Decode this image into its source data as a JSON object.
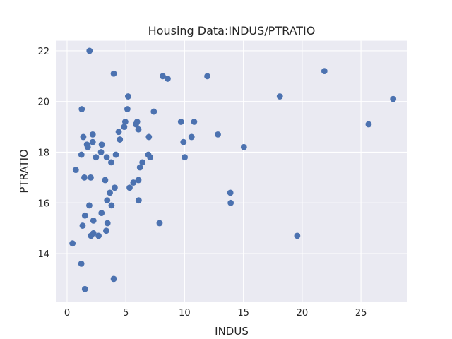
{
  "chart_data": {
    "type": "scatter",
    "title": "Housing Data:INDUS/PTRATIO",
    "xlabel": "INDUS",
    "ylabel": "PTRATIO",
    "xlim": [
      -0.9,
      28.9
    ],
    "ylim": [
      12.1,
      22.4
    ],
    "xticks": [
      0,
      5,
      10,
      15,
      20,
      25
    ],
    "yticks": [
      14,
      16,
      18,
      20,
      22
    ],
    "grid": true,
    "background": "#eaeaf2",
    "grid_color": "#ffffff",
    "marker_color": "#4c72b0",
    "points": [
      [
        0.46,
        14.4
      ],
      [
        0.74,
        17.3
      ],
      [
        1.21,
        13.6
      ],
      [
        1.22,
        17.9
      ],
      [
        1.25,
        19.7
      ],
      [
        1.32,
        15.1
      ],
      [
        1.38,
        18.6
      ],
      [
        1.47,
        17.0
      ],
      [
        1.52,
        15.5
      ],
      [
        1.52,
        12.6
      ],
      [
        1.69,
        18.3
      ],
      [
        1.76,
        18.2
      ],
      [
        1.89,
        15.9
      ],
      [
        1.91,
        22.0
      ],
      [
        2.01,
        17.0
      ],
      [
        2.03,
        14.7
      ],
      [
        2.18,
        18.4
      ],
      [
        2.18,
        18.7
      ],
      [
        2.24,
        15.3
      ],
      [
        2.24,
        14.8
      ],
      [
        2.46,
        17.8
      ],
      [
        2.68,
        14.7
      ],
      [
        2.89,
        18.0
      ],
      [
        2.93,
        15.6
      ],
      [
        2.95,
        18.3
      ],
      [
        3.24,
        16.9
      ],
      [
        3.33,
        14.9
      ],
      [
        3.37,
        17.8
      ],
      [
        3.41,
        16.1
      ],
      [
        3.44,
        15.2
      ],
      [
        3.64,
        16.4
      ],
      [
        3.75,
        17.6
      ],
      [
        3.78,
        15.9
      ],
      [
        3.97,
        13.0
      ],
      [
        3.97,
        21.1
      ],
      [
        4.05,
        16.6
      ],
      [
        4.15,
        17.9
      ],
      [
        4.39,
        18.8
      ],
      [
        4.49,
        18.5
      ],
      [
        4.86,
        19.0
      ],
      [
        4.95,
        19.2
      ],
      [
        5.13,
        19.7
      ],
      [
        5.19,
        20.2
      ],
      [
        5.32,
        16.6
      ],
      [
        5.64,
        16.8
      ],
      [
        5.86,
        19.1
      ],
      [
        5.96,
        19.2
      ],
      [
        6.07,
        16.9
      ],
      [
        6.07,
        18.9
      ],
      [
        6.09,
        16.1
      ],
      [
        6.2,
        17.4
      ],
      [
        6.41,
        17.6
      ],
      [
        6.91,
        17.9
      ],
      [
        6.96,
        18.6
      ],
      [
        7.07,
        17.8
      ],
      [
        7.38,
        19.6
      ],
      [
        7.87,
        15.2
      ],
      [
        8.14,
        21.0
      ],
      [
        8.56,
        20.9
      ],
      [
        9.69,
        19.2
      ],
      [
        9.9,
        18.4
      ],
      [
        10.01,
        17.8
      ],
      [
        10.59,
        18.6
      ],
      [
        10.81,
        19.2
      ],
      [
        11.93,
        21.0
      ],
      [
        12.83,
        18.7
      ],
      [
        13.89,
        16.4
      ],
      [
        13.92,
        16.0
      ],
      [
        15.04,
        18.2
      ],
      [
        18.1,
        20.2
      ],
      [
        19.58,
        14.7
      ],
      [
        21.89,
        21.2
      ],
      [
        25.65,
        19.1
      ],
      [
        27.74,
        20.1
      ]
    ]
  }
}
